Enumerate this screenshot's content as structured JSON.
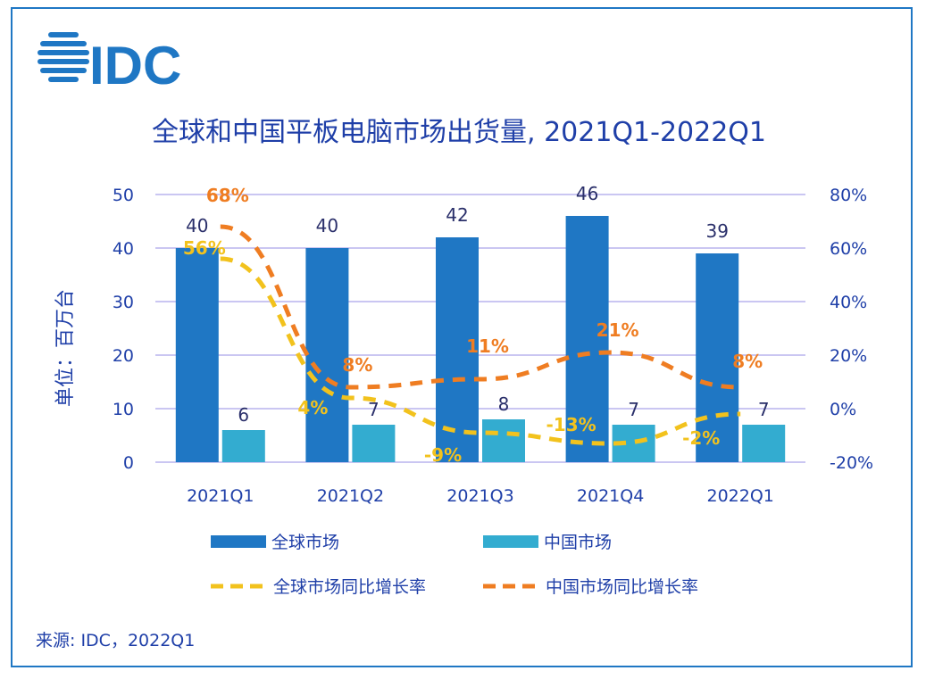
{
  "brand": {
    "logo_text": "IDC",
    "logo_color": "#1f77c4"
  },
  "chart_data": {
    "type": "bar",
    "title": "全球和中国平板电脑市场出货量, 2021Q1-2022Q1",
    "ylabel": "单位：百万台",
    "categories": [
      "2021Q1",
      "2021Q2",
      "2021Q3",
      "2021Q4",
      "2022Q1"
    ],
    "ylim": [
      0,
      50
    ],
    "y_ticks": [
      "0",
      "10",
      "20",
      "30",
      "40",
      "50"
    ],
    "y2lim": [
      -20,
      80
    ],
    "y2_ticks": [
      "-20%",
      "0%",
      "20%",
      "40%",
      "60%",
      "80%"
    ],
    "grid": true,
    "legend_position": "bottom",
    "series": [
      {
        "name": "全球市场",
        "kind": "bar",
        "color": "#1f77c4",
        "values": [
          40,
          40,
          42,
          46,
          39
        ],
        "labels": [
          "40",
          "40",
          "42",
          "46",
          "39"
        ]
      },
      {
        "name": "中国市场",
        "kind": "bar",
        "color": "#33acd0",
        "values": [
          6,
          7,
          8,
          7,
          7
        ],
        "labels": [
          "6",
          "7",
          "8",
          "7",
          "7"
        ]
      },
      {
        "name": "全球市场同比增长率",
        "kind": "line",
        "axis": "right",
        "dashed": true,
        "color": "#f2c21d",
        "values": [
          56,
          4,
          -9,
          -13,
          -2
        ],
        "labels": [
          "56%",
          "4%",
          "-9%",
          "-13%",
          "-2%"
        ]
      },
      {
        "name": "中国市场同比增长率",
        "kind": "line",
        "axis": "right",
        "dashed": true,
        "color": "#ef7d22",
        "values": [
          68,
          8,
          11,
          21,
          8
        ],
        "labels": [
          "68%",
          "8%",
          "11%",
          "21%",
          "8%"
        ]
      }
    ]
  },
  "source": "来源: IDC，2022Q1"
}
